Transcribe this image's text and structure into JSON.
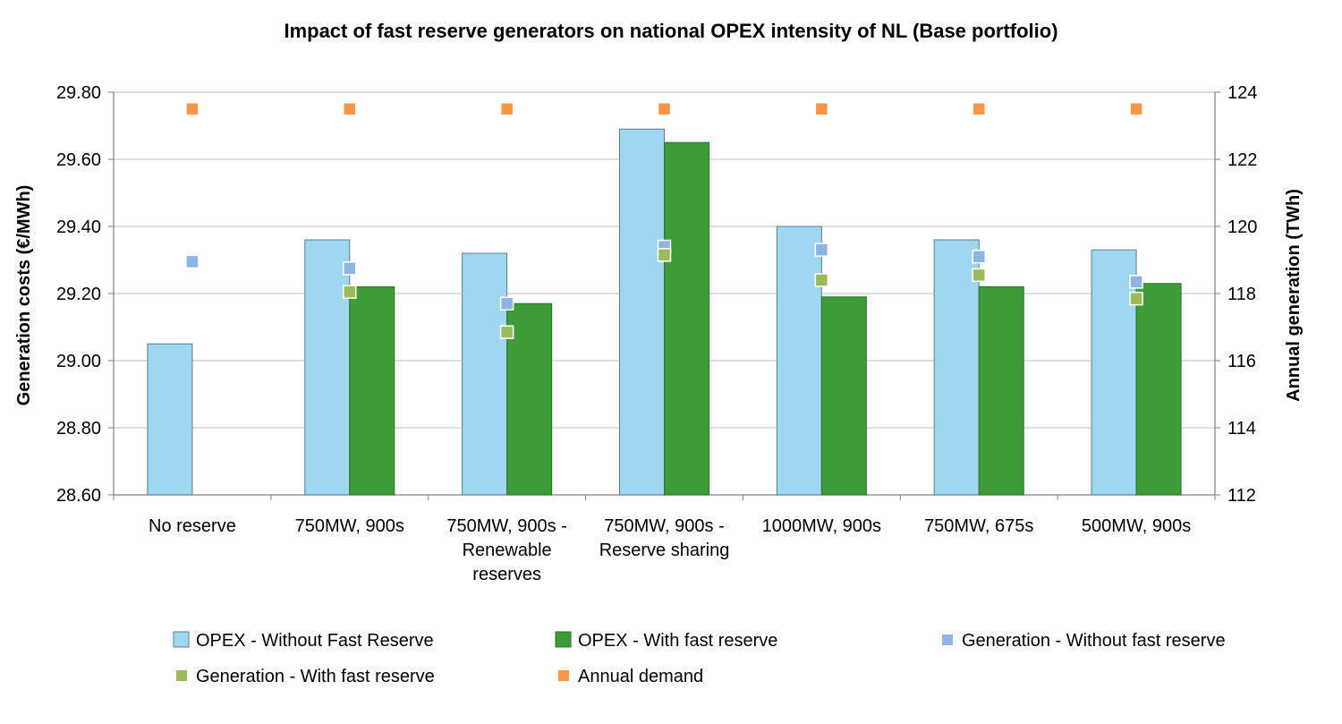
{
  "chart_data": {
    "type": "bar",
    "title": "Impact of fast reserve generators on national OPEX intensity of NL (Base portfolio)",
    "ylabel": "Generation costs (€/MWh)",
    "y2label": "Annual generation (TWh)",
    "ylim": [
      28.6,
      29.8
    ],
    "y2lim": [
      112,
      124
    ],
    "yticks": [
      "28.60",
      "28.80",
      "29.00",
      "29.20",
      "29.40",
      "29.60",
      "29.80"
    ],
    "y2ticks": [
      "112",
      "114",
      "116",
      "118",
      "120",
      "122",
      "124"
    ],
    "categories": [
      [
        "No reserve"
      ],
      [
        "750MW, 900s"
      ],
      [
        "750MW, 900s -",
        "Renewable",
        "reserves"
      ],
      [
        "750MW, 900s -",
        "Reserve sharing"
      ],
      [
        "1000MW, 900s"
      ],
      [
        "750MW, 675s"
      ],
      [
        "500MW, 900s"
      ]
    ],
    "series": [
      {
        "name": "OPEX - Without Fast Reserve",
        "kind": "bar",
        "axis": "left",
        "color": "#9fd7f0",
        "values": [
          29.05,
          29.36,
          29.32,
          29.69,
          29.4,
          29.36,
          29.33
        ]
      },
      {
        "name": "OPEX - With fast reserve",
        "kind": "bar",
        "axis": "left",
        "color": "#3d9c37",
        "values": [
          null,
          29.22,
          29.17,
          29.65,
          29.19,
          29.22,
          29.23
        ]
      },
      {
        "name": "Generation - Without fast reserve",
        "kind": "marker",
        "axis": "right",
        "color": "#8db4e2",
        "values": [
          118.95,
          118.75,
          117.7,
          119.4,
          119.3,
          119.1,
          118.35
        ]
      },
      {
        "name": "Generation - With fast reserve",
        "kind": "marker",
        "axis": "right",
        "color": "#9bbb59",
        "values": [
          null,
          118.05,
          116.85,
          119.15,
          118.4,
          118.55,
          117.85
        ]
      },
      {
        "name": "Annual demand",
        "kind": "marker",
        "axis": "right",
        "color": "#f79646",
        "values": [
          123.5,
          123.5,
          123.5,
          123.5,
          123.5,
          123.5,
          123.5
        ]
      }
    ],
    "grid": true,
    "legend_position": "bottom"
  }
}
